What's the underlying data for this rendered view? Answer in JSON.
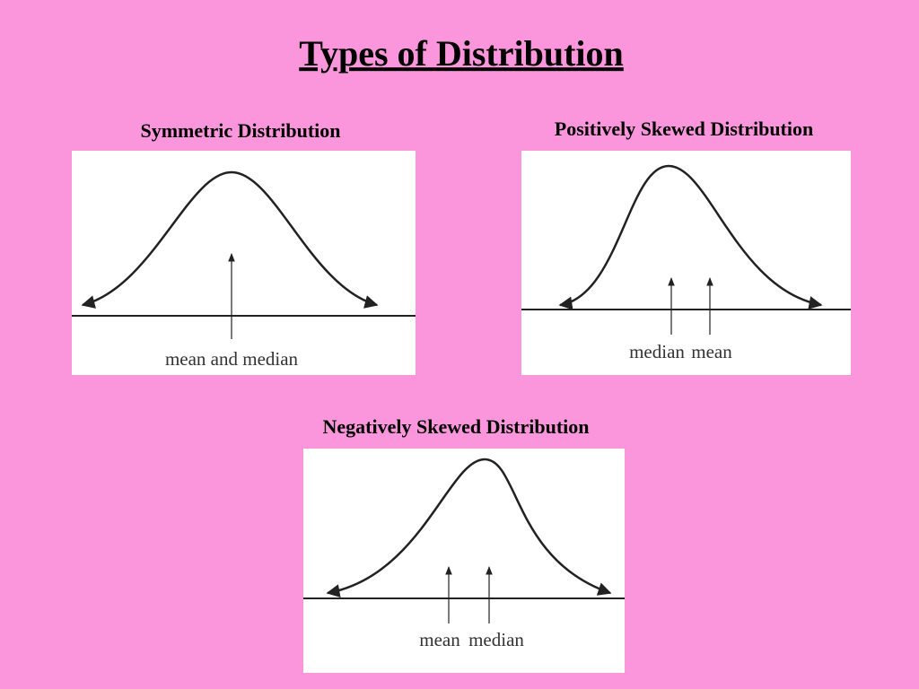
{
  "title": "Types of Distribution",
  "panels": [
    {
      "title": "Symmetric Distribution",
      "labels": [
        "mean and median"
      ]
    },
    {
      "title": "Positively Skewed Distribution",
      "labels": [
        "median",
        "mean"
      ]
    },
    {
      "title": "Negatively Skewed Distribution",
      "labels": [
        "mean",
        "median"
      ]
    }
  ]
}
